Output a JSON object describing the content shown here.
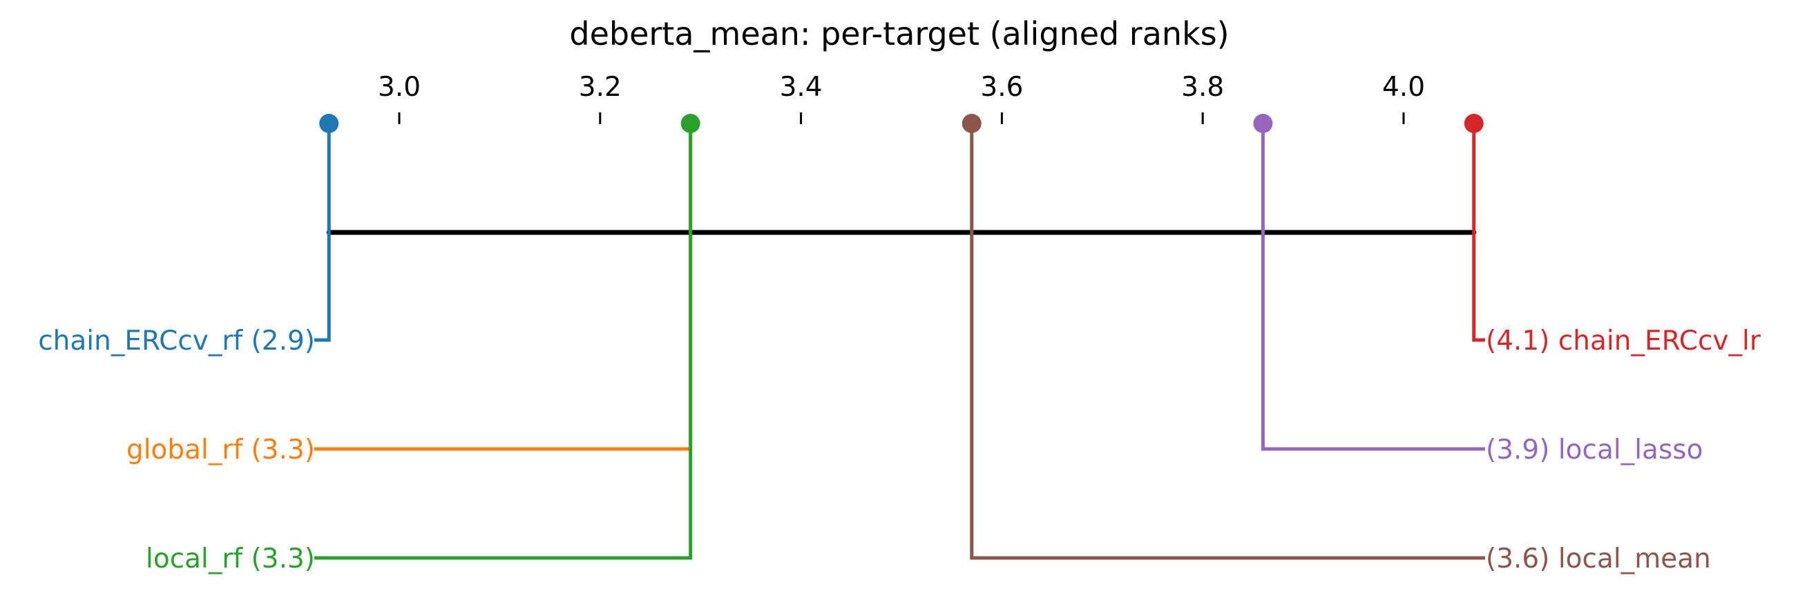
{
  "chart_data": {
    "type": "critical-difference",
    "title": "deberta_mean: per-target (aligned ranks)",
    "axis": {
      "range": [
        2.93,
        4.07
      ],
      "ticks": [
        3.0,
        3.2,
        3.4,
        3.6,
        3.8,
        4.0
      ],
      "tick_labels": [
        "3.0",
        "3.2",
        "3.4",
        "3.6",
        "3.8",
        "4.0"
      ]
    },
    "methods": [
      {
        "name": "chain_ERCcv_rf",
        "rank": 2.93,
        "label": "chain_ERCcv_rf (2.9)",
        "side": "left",
        "row": 0,
        "color": "#1f77b4",
        "marker": true
      },
      {
        "name": "global_rf",
        "rank": 3.29,
        "label": "global_rf (3.3)",
        "side": "left",
        "row": 1,
        "color": "#ff7f0e",
        "marker": false
      },
      {
        "name": "local_rf",
        "rank": 3.29,
        "label": "local_rf (3.3)",
        "side": "left",
        "row": 2,
        "color": "#2ca02c",
        "marker": true
      },
      {
        "name": "chain_ERCcv_lr",
        "rank": 4.07,
        "label": "(4.1) chain_ERCcv_lr",
        "side": "right",
        "row": 0,
        "color": "#d62728",
        "marker": true
      },
      {
        "name": "local_lasso",
        "rank": 3.86,
        "label": "(3.9) local_lasso",
        "side": "right",
        "row": 1,
        "color": "#9467bd",
        "marker": true
      },
      {
        "name": "local_mean",
        "rank": 3.57,
        "label": "(3.6) local_mean",
        "side": "right",
        "row": 2,
        "color": "#8c564b",
        "marker": true
      }
    ],
    "cliques": [
      {
        "from": 2.93,
        "to": 4.07
      }
    ]
  }
}
